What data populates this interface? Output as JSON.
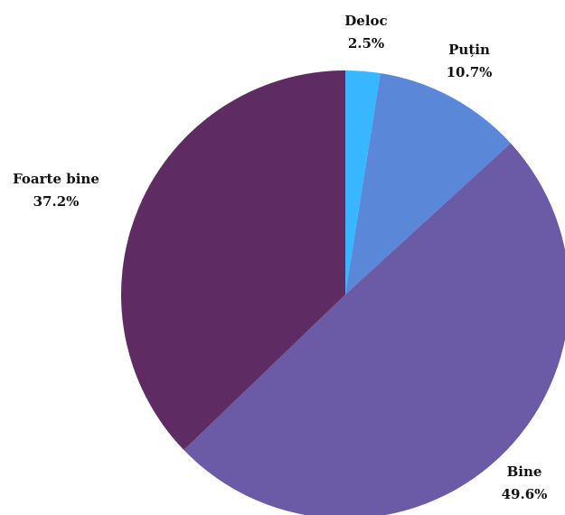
{
  "chart_data": {
    "type": "pie",
    "unit": "%",
    "start_angle_deg": 0,
    "direction": "clockwise",
    "slices": [
      {
        "label": "Deloc",
        "value": 2.5,
        "value_label": "2.5%",
        "color": "#38b6ff"
      },
      {
        "label": "Puțin",
        "value": 10.7,
        "value_label": "10.7%",
        "color": "#5b87d9"
      },
      {
        "label": "Bine",
        "value": 49.6,
        "value_label": "49.6%",
        "color": "#6b5aa6"
      },
      {
        "label": "Foarte bine",
        "value": 37.2,
        "value_label": "37.2%",
        "color": "#5e2c63"
      }
    ]
  }
}
